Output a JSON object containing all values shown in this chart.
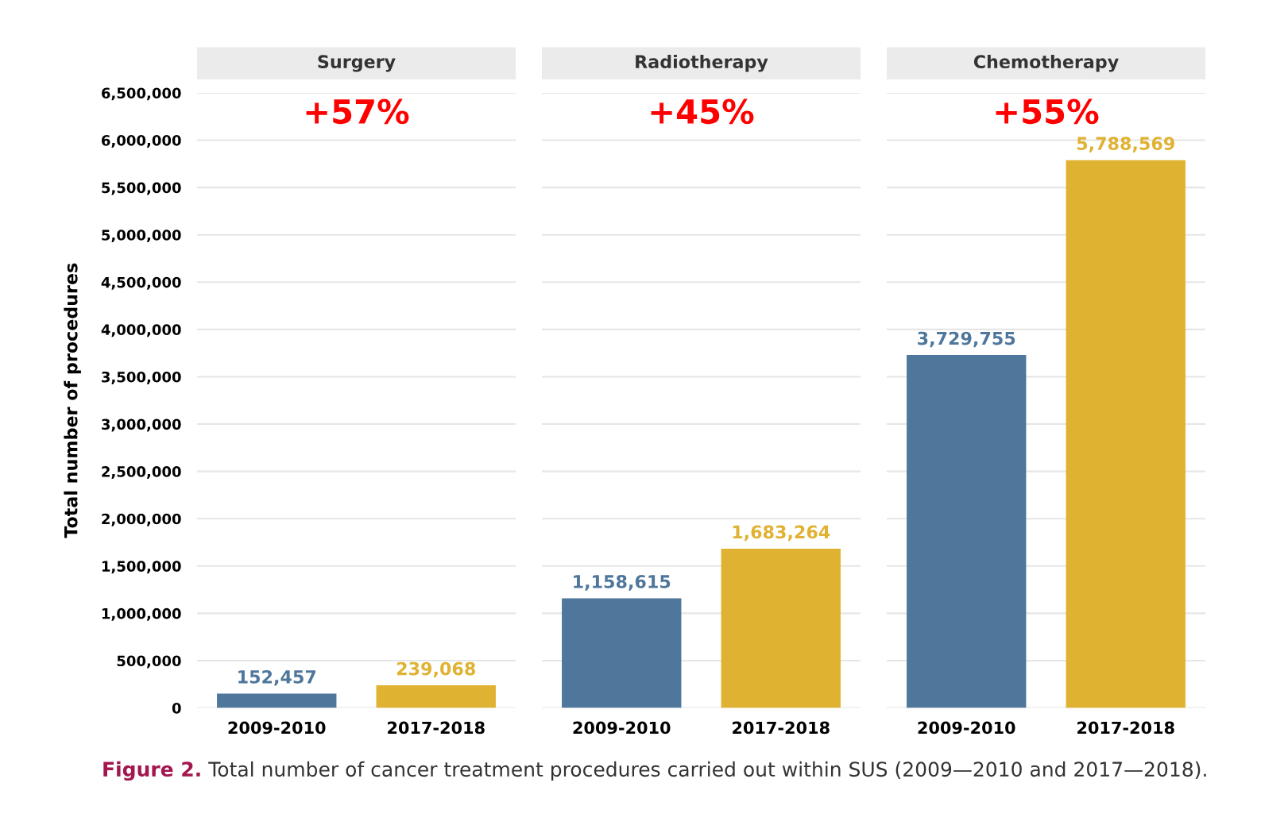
{
  "chart_data": [
    {
      "type": "bar",
      "title": "Surgery",
      "ylabel": "Total number of procedures",
      "categories": [
        "2009-2010",
        "2017-2018"
      ],
      "values": [
        152457,
        239068
      ],
      "value_labels": [
        "152,457",
        "239,068"
      ],
      "colors": [
        "#4f769b",
        "#e0b232"
      ],
      "grid": "y",
      "annotations": [
        "+57%",
        "Figure 2.",
        "Total number of cancer treatment procedures carried out within SUS (2009—2010 and 2017—2018)."
      ],
      "ylim": [
        0,
        6500000
      ],
      "yticks": [
        0,
        {
          "value": 500000,
          "label": "500,000"
        },
        {
          "value": 1000000,
          "label": "1,000,000"
        },
        {
          "value": 1500000,
          "label": "1,500,000"
        },
        {
          "value": 2000000,
          "label": "2,000,000"
        },
        {
          "value": 2500000,
          "label": "2,500,000"
        },
        {
          "value": 3000000,
          "label": "3,000,000"
        },
        {
          "value": 3500000,
          "label": "3,500,000"
        },
        {
          "value": 4000000,
          "label": "4,000,000"
        },
        {
          "value": 4500000,
          "label": "4,500,000"
        },
        {
          "value": 5000000,
          "label": "5,000,000"
        },
        {
          "value": 5500000,
          "label": "5,500,000"
        },
        {
          "value": 6000000,
          "label": "6,000,000"
        },
        {
          "value": 6500000,
          "label": "6,500,000"
        }
      ]
    },
    {
      "type": "bar",
      "title": "Radiotherapy",
      "categories": [
        "2009-2010",
        "2017-2018"
      ],
      "values": [
        1158615,
        1683264
      ],
      "value_labels": [
        "1,158,615",
        "1,683,264"
      ],
      "colors": [
        "#4f769b",
        "#e0b232"
      ],
      "grid": "y",
      "annotations": [
        "+45%"
      ],
      "tick_labels": "x",
      "ylim": [
        0,
        6500000
      ],
      "yticks": [
        0,
        500000,
        1000000,
        1500000,
        2000000,
        2500000,
        3000000,
        3500000,
        4000000,
        4500000,
        5000000,
        5500000,
        6000000,
        6500000
      ]
    },
    {
      "type": "bar",
      "title": "Chemotherapy",
      "categories": [
        "2009-2010",
        "2017-2018"
      ],
      "values": [
        3729755,
        5788569
      ],
      "value_labels": [
        "3,729,755",
        "5,788,569"
      ],
      "colors": [
        "#4f769b",
        "#e0b232"
      ],
      "grid": "y",
      "annotations": [
        "+55%"
      ],
      "tick_labels": "x",
      "ylim": [
        0,
        6500000
      ],
      "yticks": [
        0,
        500000,
        1000000,
        1500000,
        2000000,
        2500000,
        3000000,
        3500000,
        4000000,
        4500000,
        5000000,
        5500000,
        6000000,
        6500000
      ]
    }
  ]
}
